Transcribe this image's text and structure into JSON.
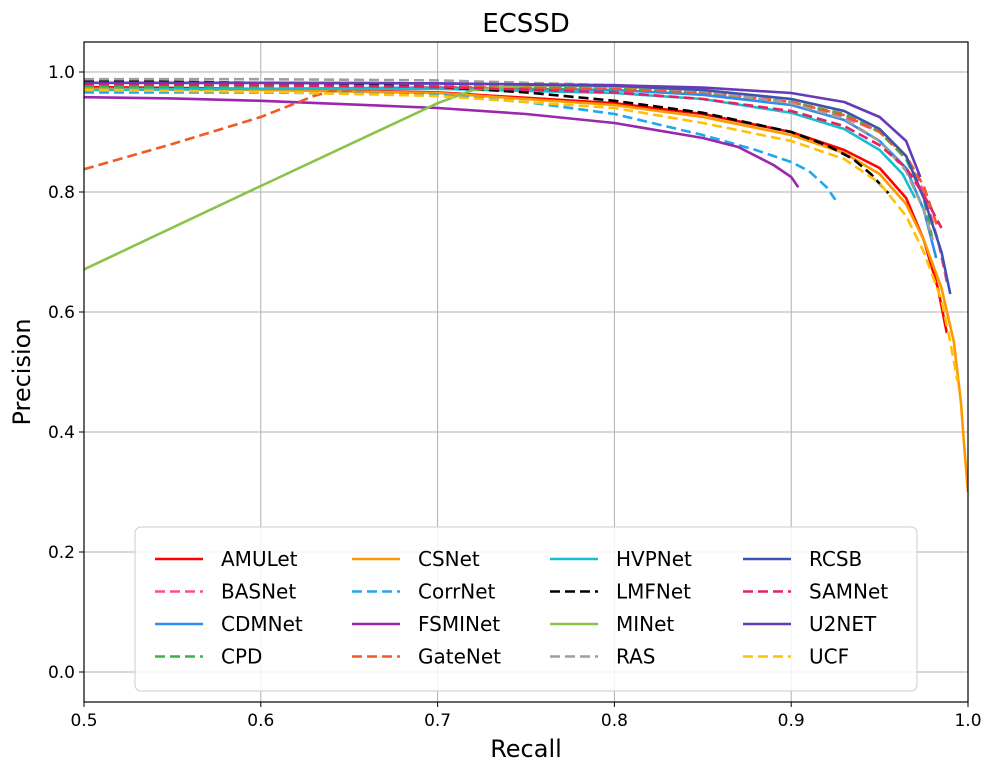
{
  "chart_data": {
    "type": "line",
    "title": "ECSSD",
    "xlabel": "Recall",
    "ylabel": "Precision",
    "xlim": [
      0.5,
      1.0
    ],
    "ylim": [
      -0.05,
      1.05
    ],
    "xticks": [
      0.5,
      0.6,
      0.7,
      0.8,
      0.9,
      1.0
    ],
    "xtick_labels": [
      "0.5",
      "0.6",
      "0.7",
      "0.8",
      "0.9",
      "1.0"
    ],
    "yticks": [
      0.0,
      0.2,
      0.4,
      0.6,
      0.8,
      1.0
    ],
    "ytick_labels": [
      "0.0",
      "0.2",
      "0.4",
      "0.6",
      "0.8",
      "1.0"
    ],
    "grid": true,
    "legend_position": "lower-center",
    "legend_columns": 4,
    "series": [
      {
        "name": "AMULet",
        "color": "#ff0000",
        "dash": "solid",
        "points": [
          [
            0.5,
            0.975
          ],
          [
            0.6,
            0.972
          ],
          [
            0.7,
            0.966
          ],
          [
            0.8,
            0.948
          ],
          [
            0.85,
            0.93
          ],
          [
            0.9,
            0.9
          ],
          [
            0.93,
            0.87
          ],
          [
            0.95,
            0.84
          ],
          [
            0.965,
            0.79
          ],
          [
            0.975,
            0.72
          ],
          [
            0.983,
            0.64
          ],
          [
            0.988,
            0.565
          ]
        ]
      },
      {
        "name": "BASNet",
        "color": "#ff4d88",
        "dash": "dashed",
        "points": [
          [
            0.5,
            0.978
          ],
          [
            0.6,
            0.978
          ],
          [
            0.7,
            0.977
          ],
          [
            0.8,
            0.972
          ],
          [
            0.85,
            0.965
          ],
          [
            0.9,
            0.948
          ],
          [
            0.93,
            0.925
          ],
          [
            0.95,
            0.9
          ],
          [
            0.965,
            0.86
          ],
          [
            0.975,
            0.8
          ],
          [
            0.983,
            0.72
          ],
          [
            0.988,
            0.65
          ]
        ]
      },
      {
        "name": "CDMNet",
        "color": "#2d8cf0",
        "dash": "solid",
        "points": [
          [
            0.5,
            0.97
          ],
          [
            0.6,
            0.972
          ],
          [
            0.7,
            0.974
          ],
          [
            0.8,
            0.97
          ],
          [
            0.85,
            0.962
          ],
          [
            0.9,
            0.945
          ],
          [
            0.93,
            0.92
          ],
          [
            0.95,
            0.885
          ],
          [
            0.965,
            0.84
          ],
          [
            0.975,
            0.77
          ],
          [
            0.982,
            0.69
          ]
        ]
      },
      {
        "name": "CPD",
        "color": "#3cb04a",
        "dash": "dashed",
        "points": [
          [
            0.5,
            0.975
          ],
          [
            0.6,
            0.975
          ],
          [
            0.7,
            0.975
          ],
          [
            0.8,
            0.972
          ],
          [
            0.85,
            0.966
          ],
          [
            0.9,
            0.95
          ],
          [
            0.93,
            0.93
          ],
          [
            0.95,
            0.9
          ],
          [
            0.965,
            0.855
          ],
          [
            0.975,
            0.79
          ],
          [
            0.98,
            0.72
          ]
        ]
      },
      {
        "name": "CSNet",
        "color": "#ff9900",
        "dash": "solid",
        "points": [
          [
            0.5,
            0.972
          ],
          [
            0.6,
            0.97
          ],
          [
            0.7,
            0.965
          ],
          [
            0.8,
            0.945
          ],
          [
            0.85,
            0.925
          ],
          [
            0.9,
            0.895
          ],
          [
            0.93,
            0.865
          ],
          [
            0.95,
            0.83
          ],
          [
            0.965,
            0.78
          ],
          [
            0.975,
            0.72
          ],
          [
            0.985,
            0.64
          ],
          [
            0.992,
            0.55
          ],
          [
            0.996,
            0.45
          ],
          [
            0.998,
            0.37
          ],
          [
            1.0,
            0.3
          ]
        ]
      },
      {
        "name": "CorrNet",
        "color": "#1fa8f0",
        "dash": "dashed",
        "points": [
          [
            0.5,
            0.966
          ],
          [
            0.6,
            0.966
          ],
          [
            0.7,
            0.962
          ],
          [
            0.75,
            0.95
          ],
          [
            0.8,
            0.93
          ],
          [
            0.85,
            0.895
          ],
          [
            0.88,
            0.87
          ],
          [
            0.9,
            0.85
          ],
          [
            0.91,
            0.835
          ],
          [
            0.92,
            0.808
          ],
          [
            0.925,
            0.787
          ]
        ]
      },
      {
        "name": "FSMINet",
        "color": "#9b27af",
        "dash": "solid",
        "points": [
          [
            0.5,
            0.958
          ],
          [
            0.55,
            0.956
          ],
          [
            0.6,
            0.952
          ],
          [
            0.7,
            0.94
          ],
          [
            0.75,
            0.93
          ],
          [
            0.8,
            0.915
          ],
          [
            0.85,
            0.89
          ],
          [
            0.87,
            0.875
          ],
          [
            0.89,
            0.845
          ],
          [
            0.9,
            0.825
          ],
          [
            0.904,
            0.808
          ]
        ]
      },
      {
        "name": "GateNet",
        "color": "#f25a24",
        "dash": "dashed",
        "points": [
          [
            0.5,
            0.838
          ],
          [
            0.55,
            0.88
          ],
          [
            0.6,
            0.925
          ],
          [
            0.63,
            0.96
          ],
          [
            0.64,
            0.968
          ],
          [
            0.7,
            0.975
          ],
          [
            0.8,
            0.972
          ],
          [
            0.85,
            0.966
          ],
          [
            0.9,
            0.95
          ],
          [
            0.93,
            0.928
          ],
          [
            0.95,
            0.9
          ],
          [
            0.965,
            0.86
          ],
          [
            0.975,
            0.81
          ],
          [
            0.983,
            0.74
          ]
        ]
      },
      {
        "name": "HVPNet",
        "color": "#17becf",
        "dash": "solid",
        "points": [
          [
            0.5,
            0.97
          ],
          [
            0.6,
            0.972
          ],
          [
            0.7,
            0.972
          ],
          [
            0.8,
            0.965
          ],
          [
            0.85,
            0.955
          ],
          [
            0.9,
            0.932
          ],
          [
            0.93,
            0.905
          ],
          [
            0.95,
            0.87
          ],
          [
            0.963,
            0.83
          ],
          [
            0.97,
            0.79
          ]
        ]
      },
      {
        "name": "LMFNet",
        "color": "#000000",
        "dash": "dashed",
        "points": [
          [
            0.5,
            0.985
          ],
          [
            0.6,
            0.982
          ],
          [
            0.7,
            0.975
          ],
          [
            0.75,
            0.966
          ],
          [
            0.8,
            0.952
          ],
          [
            0.85,
            0.932
          ],
          [
            0.9,
            0.9
          ],
          [
            0.92,
            0.878
          ],
          [
            0.935,
            0.855
          ],
          [
            0.945,
            0.83
          ],
          [
            0.955,
            0.798
          ]
        ]
      },
      {
        "name": "MINet",
        "color": "#8bc34a",
        "dash": "solid",
        "points": [
          [
            0.5,
            0.671
          ],
          [
            0.6,
            0.81
          ],
          [
            0.7,
            0.948
          ],
          [
            0.72,
            0.97
          ],
          [
            0.75,
            0.978
          ],
          [
            0.8,
            0.976
          ],
          [
            0.85,
            0.97
          ],
          [
            0.9,
            0.955
          ],
          [
            0.93,
            0.935
          ],
          [
            0.95,
            0.905
          ],
          [
            0.965,
            0.86
          ],
          [
            0.975,
            0.79
          ]
        ]
      },
      {
        "name": "RAS",
        "color": "#9e9e9e",
        "dash": "dashed",
        "points": [
          [
            0.5,
            0.988
          ],
          [
            0.6,
            0.988
          ],
          [
            0.7,
            0.986
          ],
          [
            0.8,
            0.978
          ],
          [
            0.85,
            0.968
          ],
          [
            0.9,
            0.948
          ],
          [
            0.93,
            0.922
          ],
          [
            0.95,
            0.885
          ],
          [
            0.965,
            0.835
          ],
          [
            0.975,
            0.77
          ],
          [
            0.98,
            0.72
          ]
        ]
      },
      {
        "name": "RCSB",
        "color": "#3f51b5",
        "dash": "solid",
        "points": [
          [
            0.5,
            0.982
          ],
          [
            0.6,
            0.982
          ],
          [
            0.7,
            0.981
          ],
          [
            0.8,
            0.977
          ],
          [
            0.85,
            0.97
          ],
          [
            0.9,
            0.955
          ],
          [
            0.93,
            0.935
          ],
          [
            0.95,
            0.905
          ],
          [
            0.965,
            0.86
          ],
          [
            0.975,
            0.79
          ],
          [
            0.985,
            0.7
          ],
          [
            0.99,
            0.63
          ]
        ]
      },
      {
        "name": "SAMNet",
        "color": "#e91e63",
        "dash": "dashed",
        "points": [
          [
            0.5,
            0.98
          ],
          [
            0.6,
            0.978
          ],
          [
            0.7,
            0.975
          ],
          [
            0.8,
            0.966
          ],
          [
            0.85,
            0.955
          ],
          [
            0.9,
            0.935
          ],
          [
            0.93,
            0.91
          ],
          [
            0.95,
            0.878
          ],
          [
            0.965,
            0.84
          ],
          [
            0.975,
            0.795
          ],
          [
            0.985,
            0.74
          ]
        ]
      },
      {
        "name": "U2NET",
        "color": "#673ab7",
        "dash": "solid",
        "points": [
          [
            0.5,
            0.982
          ],
          [
            0.6,
            0.982
          ],
          [
            0.7,
            0.981
          ],
          [
            0.8,
            0.978
          ],
          [
            0.85,
            0.974
          ],
          [
            0.9,
            0.965
          ],
          [
            0.93,
            0.95
          ],
          [
            0.95,
            0.925
          ],
          [
            0.965,
            0.885
          ],
          [
            0.973,
            0.825
          ]
        ]
      },
      {
        "name": "UCF",
        "color": "#ffc107",
        "dash": "dashed",
        "points": [
          [
            0.5,
            0.97
          ],
          [
            0.6,
            0.967
          ],
          [
            0.7,
            0.96
          ],
          [
            0.8,
            0.94
          ],
          [
            0.85,
            0.915
          ],
          [
            0.9,
            0.885
          ],
          [
            0.93,
            0.855
          ],
          [
            0.95,
            0.815
          ],
          [
            0.965,
            0.76
          ],
          [
            0.975,
            0.7
          ],
          [
            0.985,
            0.62
          ],
          [
            0.99,
            0.55
          ],
          [
            0.994,
            0.485
          ]
        ]
      }
    ]
  }
}
